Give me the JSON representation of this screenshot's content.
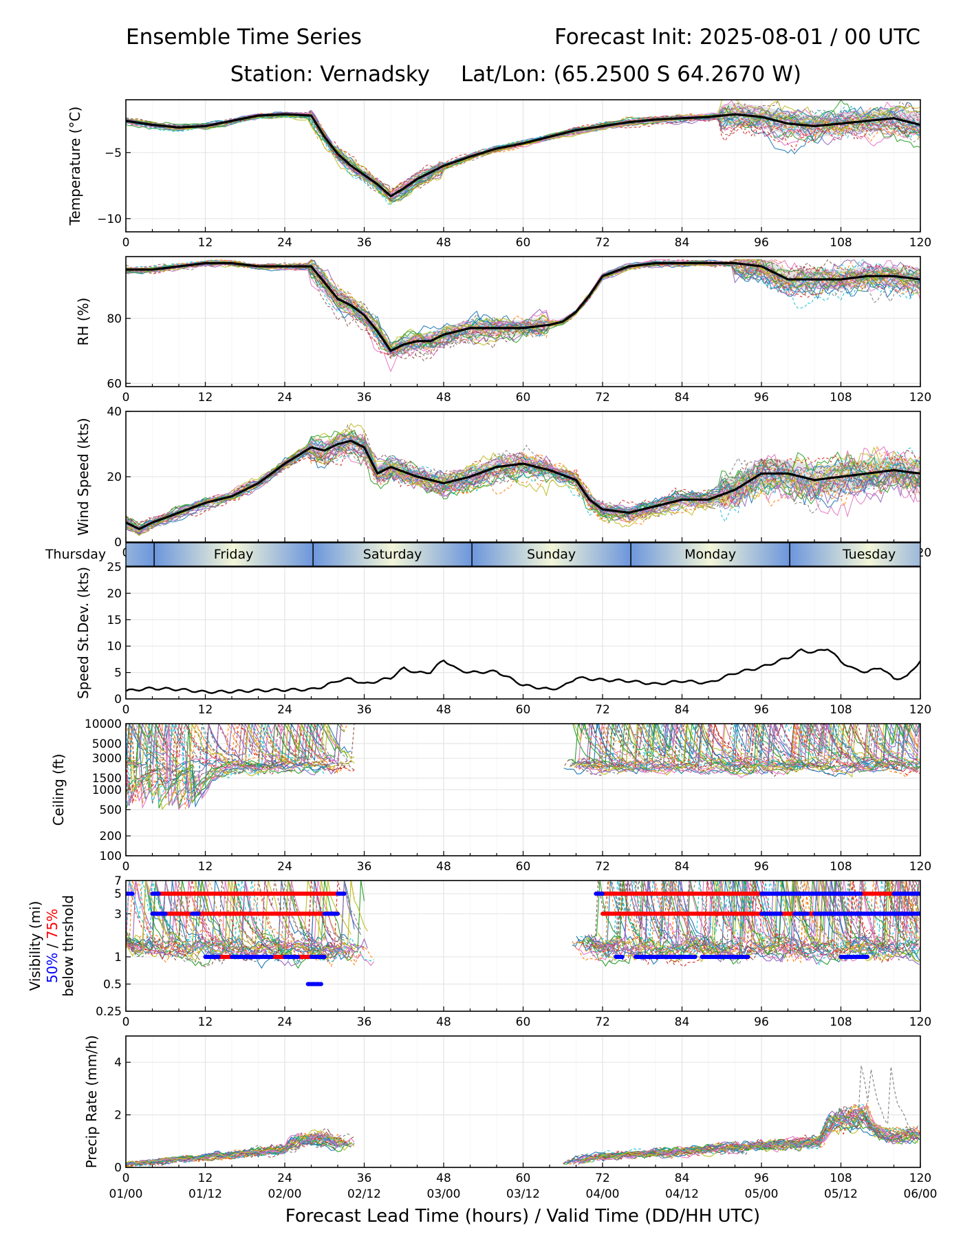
{
  "header": {
    "title_left": "Ensemble Time Series",
    "title_right": "Forecast Init: 2025-08-01 / 00 UTC",
    "subtitle_station": "Station: Vernadsky",
    "subtitle_latlon": "Lat/Lon: (65.2500 S 64.2670 W)"
  },
  "x_axis": {
    "label": "Forecast Lead Time (hours) / Valid Time (DD/HH UTC)",
    "range": [
      0,
      120
    ],
    "ticks": [
      0,
      12,
      24,
      36,
      48,
      60,
      72,
      84,
      96,
      108,
      120
    ],
    "tick_labels": [
      "0",
      "12",
      "24",
      "36",
      "48",
      "60",
      "72",
      "84",
      "96",
      "108",
      "120"
    ],
    "valid_labels": [
      "01/00",
      "01/12",
      "02/00",
      "02/12",
      "03/00",
      "03/12",
      "04/00",
      "04/12",
      "05/00",
      "05/12",
      "06/00"
    ]
  },
  "day_band": {
    "days": [
      {
        "name": "Thursday",
        "start": -24,
        "end": 4.27
      },
      {
        "name": "Friday",
        "start": 4.27,
        "end": 28.27
      },
      {
        "name": "Saturday",
        "start": 28.27,
        "end": 52.27
      },
      {
        "name": "Sunday",
        "start": 52.27,
        "end": 76.27
      },
      {
        "name": "Monday",
        "start": 76.27,
        "end": 100.27
      },
      {
        "name": "Tuesday",
        "start": 100.27,
        "end": 124.27
      }
    ]
  },
  "colors": {
    "mean_line": "#000000",
    "visibility_50": "#0000ff",
    "visibility_75": "#ff0000",
    "spread_band": "#b0b0b0",
    "grid": "#e6e6e6",
    "day_band_edge": "#6c96dc",
    "day_band_center": "#f3f6d8",
    "ensemble_palette": [
      "#1f77b4",
      "#ff7f0e",
      "#2ca02c",
      "#d62728",
      "#9467bd",
      "#8c564b",
      "#e377c2",
      "#7f7f7f",
      "#bcbd22",
      "#17becf"
    ]
  },
  "chart_data": [
    {
      "id": "temperature",
      "type": "line",
      "ylabel": "Temperature (°C)",
      "ylim": [
        -11,
        -1
      ],
      "yticks": [
        -10,
        -5
      ],
      "ytick_labels": [
        "−10",
        "−5"
      ],
      "grid": true,
      "member_count": 30,
      "mean": {
        "x": [
          0,
          4,
          8,
          12,
          16,
          20,
          24,
          28,
          30,
          32,
          34,
          36,
          38,
          40,
          42,
          44,
          46,
          48,
          52,
          56,
          60,
          64,
          68,
          72,
          76,
          80,
          84,
          88,
          92,
          96,
          100,
          104,
          108,
          112,
          116,
          120
        ],
        "y": [
          -2.6,
          -2.9,
          -3.1,
          -3.0,
          -2.6,
          -2.2,
          -2.1,
          -2.2,
          -3.8,
          -5.1,
          -6.0,
          -6.7,
          -7.4,
          -8.3,
          -7.7,
          -7.0,
          -6.5,
          -6.0,
          -5.3,
          -4.7,
          -4.3,
          -3.8,
          -3.3,
          -3.0,
          -2.7,
          -2.5,
          -2.4,
          -2.3,
          -2.1,
          -2.3,
          -2.8,
          -3.0,
          -2.8,
          -2.6,
          -2.4,
          -2.9
        ]
      }
    },
    {
      "id": "rh",
      "type": "line",
      "ylabel": "RH (%)",
      "ylim": [
        59,
        99
      ],
      "yticks": [
        60,
        80
      ],
      "ytick_labels": [
        "60",
        "80"
      ],
      "grid": true,
      "member_count": 30,
      "mean": {
        "x": [
          0,
          4,
          8,
          12,
          16,
          20,
          24,
          28,
          30,
          32,
          34,
          36,
          38,
          40,
          42,
          44,
          46,
          48,
          52,
          56,
          60,
          64,
          66,
          68,
          70,
          72,
          76,
          80,
          84,
          88,
          92,
          96,
          100,
          104,
          108,
          112,
          116,
          120
        ],
        "y": [
          95,
          95,
          96,
          97,
          97,
          96,
          96,
          96,
          91,
          86,
          84,
          81,
          76,
          70,
          72,
          73,
          73,
          75,
          77,
          77,
          77,
          78,
          79,
          82,
          87,
          93,
          96,
          97,
          97,
          97,
          97,
          96,
          92,
          92,
          92,
          93,
          93,
          92
        ]
      }
    },
    {
      "id": "wind_speed",
      "type": "line",
      "ylabel": "Wind Speed (kts)",
      "ylim": [
        0,
        40
      ],
      "yticks": [
        0,
        20,
        40
      ],
      "ytick_labels": [
        "0",
        "20",
        "40"
      ],
      "grid": true,
      "member_count": 30,
      "mean": {
        "x": [
          0,
          2,
          4,
          8,
          12,
          16,
          20,
          24,
          28,
          30,
          32,
          34,
          36,
          38,
          40,
          44,
          48,
          52,
          56,
          60,
          64,
          68,
          70,
          72,
          76,
          80,
          84,
          88,
          92,
          96,
          100,
          104,
          108,
          112,
          116,
          120
        ],
        "y": [
          6,
          4,
          6,
          9,
          12,
          14,
          18,
          24,
          29,
          28,
          30,
          31,
          29,
          21,
          23,
          20,
          18,
          20,
          23,
          24,
          22,
          19,
          13,
          10,
          9,
          11,
          13,
          13,
          16,
          21,
          21,
          19,
          20,
          21,
          22,
          21
        ]
      }
    },
    {
      "id": "speed_stdev",
      "type": "line",
      "ylabel": "Speed St.Dev. (kts)",
      "ylim": [
        0,
        25
      ],
      "yticks": [
        0,
        5,
        10,
        15,
        20,
        25
      ],
      "ytick_labels": [
        "0",
        "5",
        "10",
        "15",
        "20",
        "25"
      ],
      "grid": true,
      "series": [
        {
          "x": [
            0,
            2,
            4,
            8,
            12,
            16,
            20,
            24,
            28,
            30,
            32,
            34,
            36,
            38,
            40,
            42,
            44,
            46,
            48,
            50,
            52,
            56,
            60,
            64,
            66,
            68,
            72,
            76,
            80,
            84,
            88,
            92,
            96,
            100,
            102,
            104,
            106,
            108,
            110,
            112,
            114,
            116,
            118,
            120
          ],
          "y": [
            1.5,
            1.8,
            2.0,
            1.8,
            1.3,
            1.4,
            1.6,
            1.7,
            1.8,
            2.4,
            3.5,
            3.8,
            2.8,
            3.4,
            4.0,
            5.8,
            4.9,
            5.1,
            7.4,
            5.6,
            5.0,
            5.2,
            2.6,
            1.8,
            2.3,
            4.0,
            3.6,
            3.4,
            2.8,
            3.4,
            3.0,
            4.9,
            6.0,
            7.8,
            9.2,
            8.8,
            9.6,
            7.1,
            5.6,
            5.1,
            6.0,
            3.8,
            4.2,
            7.3
          ]
        }
      ]
    },
    {
      "id": "ceiling",
      "type": "line",
      "ylabel": "Ceiling (ft)",
      "yscale": "log",
      "ylim": [
        100,
        10000
      ],
      "yticks": [
        100,
        200,
        500,
        1000,
        1500,
        3000,
        5000,
        10000
      ],
      "ytick_labels": [
        "100",
        "200",
        "500",
        "1000",
        "1500",
        "3000",
        "5000",
        "10000"
      ],
      "grid": true,
      "member_count": 30,
      "active_ranges": [
        [
          0,
          35
        ],
        [
          66,
          120
        ]
      ]
    },
    {
      "id": "visibility",
      "type": "line",
      "ylabel": "Visibility (mi)",
      "ylabel_line2_50": "50%",
      "ylabel_line2_sep": " / ",
      "ylabel_line2_75": "75%",
      "ylabel_line3": "below thrshold",
      "yscale": "log",
      "ylim": [
        0.25,
        7
      ],
      "yticks": [
        0.25,
        0.5,
        1,
        3,
        5,
        7
      ],
      "ytick_labels": [
        "0.25",
        "0.5",
        "1",
        "3",
        "5",
        "7"
      ],
      "grid": true,
      "member_count": 30,
      "active_ranges": [
        [
          0,
          38
        ],
        [
          67,
          120
        ]
      ],
      "threshold_markers": {
        "threshold_5": {
          "pct75_ranges": [
            [
              4,
              33
            ],
            [
              71,
              120
            ]
          ],
          "pct50_ranges": [
            [
              0,
              1
            ],
            [
              4,
              5
            ],
            [
              32,
              33
            ],
            [
              71,
              72
            ],
            [
              96,
              111
            ],
            [
              116,
              120
            ]
          ]
        },
        "threshold_3": {
          "pct75_ranges": [
            [
              4,
              32
            ],
            [
              72,
              120
            ]
          ],
          "pct50_ranges": [
            [
              4,
              6
            ],
            [
              10,
              11
            ],
            [
              30,
              32
            ],
            [
              96,
              99
            ],
            [
              101,
              103
            ],
            [
              104,
              120
            ]
          ]
        },
        "threshold_1": {
          "pct75_ranges": [
            [
              12,
              30
            ]
          ],
          "pct50_ranges": [
            [
              12,
              14
            ],
            [
              16,
              22
            ],
            [
              24,
              26
            ],
            [
              28,
              30
            ],
            [
              74,
              75
            ],
            [
              77,
              86
            ],
            [
              87,
              94
            ],
            [
              108,
              112
            ]
          ]
        },
        "threshold_0_5": {
          "pct75_ranges": [],
          "pct50_ranges": [
            [
              27.5,
              29.5
            ]
          ]
        }
      }
    },
    {
      "id": "precip_rate",
      "type": "line",
      "ylabel": "Precip Rate (mm/h)",
      "ylim": [
        0,
        5
      ],
      "yticks": [
        0,
        2,
        4
      ],
      "ytick_labels": [
        "0",
        "2",
        "4"
      ],
      "grid": true,
      "member_count": 30,
      "active_ranges": [
        [
          0,
          35
        ],
        [
          66,
          120
        ]
      ]
    }
  ]
}
